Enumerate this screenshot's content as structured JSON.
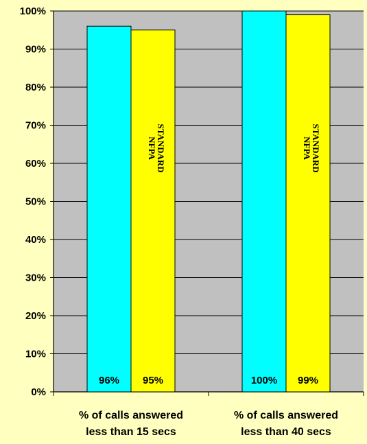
{
  "chart_data": {
    "type": "bar",
    "categories": [
      [
        "% of calls answered",
        "less than 15 secs"
      ],
      [
        "% of calls answered",
        "less than 40 secs"
      ]
    ],
    "series": [
      {
        "values": [
          96,
          100
        ],
        "color": "#00FFFF",
        "labels": [
          "96%",
          "100%"
        ]
      },
      {
        "values": [
          95,
          99
        ],
        "color": "#FFFF00",
        "labels": [
          "95%",
          "99%"
        ],
        "annotation": [
          "NFPA",
          "STANDARD"
        ]
      }
    ],
    "ylim": [
      0,
      100
    ],
    "yticks": [
      0,
      10,
      20,
      30,
      40,
      50,
      60,
      70,
      80,
      90,
      100
    ],
    "ytick_labels": [
      "0%",
      "10%",
      "20%",
      "30%",
      "40%",
      "50%",
      "60%",
      "70%",
      "80%",
      "90%",
      "100%"
    ],
    "grid": true,
    "plot_background": "#C0C0C0",
    "page_background": "#FFFFC0"
  }
}
